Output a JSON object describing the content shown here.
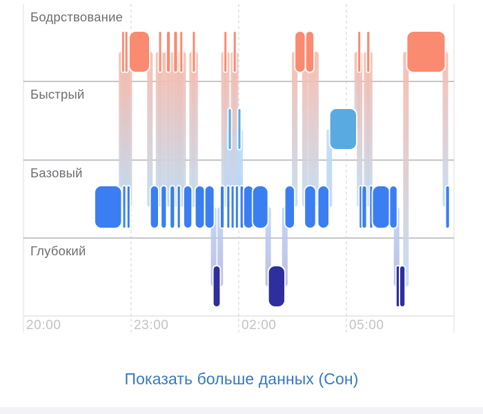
{
  "chart_data": {
    "type": "sleep-stages",
    "stages": [
      {
        "key": "awake",
        "label": "Бодрствование",
        "color": "#fa8a70"
      },
      {
        "key": "rem",
        "label": "Быстрый",
        "color": "#5aaae2"
      },
      {
        "key": "core",
        "label": "Базовый",
        "color": "#3a7ef2"
      },
      {
        "key": "deep",
        "label": "Глубокий",
        "color": "#2e2e9c"
      }
    ],
    "x_ticks": [
      "20:00",
      "23:00",
      "02:00",
      "05:00"
    ],
    "x_start": 20.0,
    "x_end": 29.0,
    "segments": [
      {
        "stage": "core",
        "start": 22.0,
        "end": 22.72
      },
      {
        "stage": "awake",
        "start": 22.75,
        "end": 22.78
      },
      {
        "stage": "core",
        "start": 22.78,
        "end": 22.83
      },
      {
        "stage": "awake",
        "start": 22.84,
        "end": 22.87
      },
      {
        "stage": "core",
        "start": 22.9,
        "end": 22.94
      },
      {
        "stage": "awake",
        "start": 22.96,
        "end": 23.5
      },
      {
        "stage": "core",
        "start": 23.55,
        "end": 23.75
      },
      {
        "stage": "awake",
        "start": 23.78,
        "end": 23.83
      },
      {
        "stage": "core",
        "start": 23.85,
        "end": 23.97
      },
      {
        "stage": "awake",
        "start": 24.0,
        "end": 24.08
      },
      {
        "stage": "core",
        "start": 24.1,
        "end": 24.2
      },
      {
        "stage": "awake",
        "start": 24.2,
        "end": 24.28
      },
      {
        "stage": "core",
        "start": 24.3,
        "end": 24.36
      },
      {
        "stage": "awake",
        "start": 24.37,
        "end": 24.42
      },
      {
        "stage": "core",
        "start": 24.48,
        "end": 24.68
      },
      {
        "stage": "awake",
        "start": 24.72,
        "end": 24.77
      },
      {
        "stage": "core",
        "start": 24.8,
        "end": 25.03
      },
      {
        "stage": "core",
        "start": 25.07,
        "end": 25.3
      },
      {
        "stage": "deep",
        "start": 25.3,
        "end": 25.47
      },
      {
        "stage": "core",
        "start": 25.5,
        "end": 25.58
      },
      {
        "stage": "awake",
        "start": 25.6,
        "end": 25.65
      },
      {
        "stage": "core",
        "start": 25.68,
        "end": 25.72
      },
      {
        "stage": "rem",
        "start": 25.72,
        "end": 25.78
      },
      {
        "stage": "core",
        "start": 25.8,
        "end": 25.85
      },
      {
        "stage": "awake",
        "start": 25.86,
        "end": 25.9
      },
      {
        "stage": "core",
        "start": 25.92,
        "end": 25.97
      },
      {
        "stage": "rem",
        "start": 25.99,
        "end": 26.03
      },
      {
        "stage": "core",
        "start": 26.05,
        "end": 26.12
      },
      {
        "stage": "core",
        "start": 26.15,
        "end": 26.4
      },
      {
        "stage": "core",
        "start": 26.4,
        "end": 26.8
      },
      {
        "stage": "deep",
        "start": 26.84,
        "end": 27.27
      },
      {
        "stage": "core",
        "start": 27.3,
        "end": 27.54
      },
      {
        "stage": "awake",
        "start": 27.58,
        "end": 27.84
      },
      {
        "stage": "core",
        "start": 27.85,
        "end": 28.13
      },
      {
        "stage": "awake",
        "start": 27.88,
        "end": 28.08
      },
      {
        "stage": "core",
        "start": 28.22,
        "end": 28.5
      },
      {
        "stage": "rem",
        "start": 28.55,
        "end": 29.27
      },
      {
        "stage": "awake",
        "start": 29.33,
        "end": 29.37
      },
      {
        "stage": "core",
        "start": 29.37,
        "end": 29.41
      },
      {
        "stage": "core",
        "start": 29.45,
        "end": 29.55
      },
      {
        "stage": "awake",
        "start": 29.58,
        "end": 29.64
      },
      {
        "stage": "core",
        "start": 29.66,
        "end": 29.72
      },
      {
        "stage": "core",
        "start": 29.74,
        "end": 30.2
      },
      {
        "stage": "core",
        "start": 30.22,
        "end": 30.4
      },
      {
        "stage": "deep",
        "start": 30.4,
        "end": 30.47
      },
      {
        "stage": "deep",
        "start": 30.5,
        "end": 30.62
      },
      {
        "stage": "awake",
        "start": 30.7,
        "end": 31.74
      },
      {
        "stage": "core",
        "start": 31.78,
        "end": 31.86
      }
    ]
  },
  "footer": {
    "more_link": "Показать больше данных (Сон)"
  }
}
